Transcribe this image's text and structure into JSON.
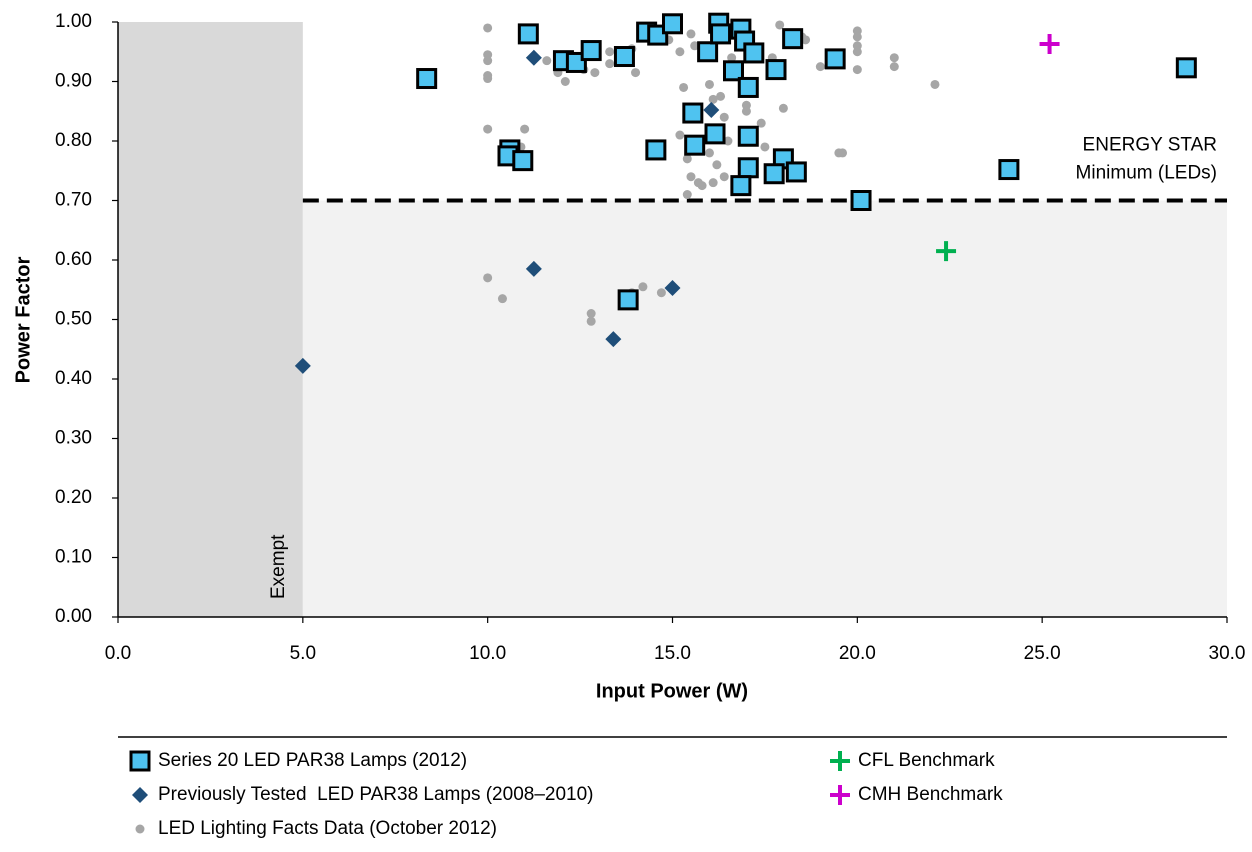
{
  "chart_data": {
    "type": "scatter",
    "xlabel": "Input Power (W)",
    "ylabel": "Power Factor",
    "xlim": [
      0,
      30
    ],
    "ylim": [
      0,
      1
    ],
    "xticks": [
      {
        "value": 0,
        "label": "0.0"
      },
      {
        "value": 5,
        "label": "5.0"
      },
      {
        "value": 10,
        "label": "10.0"
      },
      {
        "value": 15,
        "label": "15.0"
      },
      {
        "value": 20,
        "label": "20.0"
      },
      {
        "value": 25,
        "label": "25.0"
      },
      {
        "value": 30,
        "label": "30.0"
      }
    ],
    "yticks": [
      {
        "value": 0,
        "label": "0.00"
      },
      {
        "value": 0.1,
        "label": "0.10"
      },
      {
        "value": 0.2,
        "label": "0.20"
      },
      {
        "value": 0.3,
        "label": "0.30"
      },
      {
        "value": 0.4,
        "label": "0.40"
      },
      {
        "value": 0.5,
        "label": "0.50"
      },
      {
        "value": 0.6,
        "label": "0.60"
      },
      {
        "value": 0.7,
        "label": "0.70"
      },
      {
        "value": 0.8,
        "label": "0.80"
      },
      {
        "value": 0.9,
        "label": "0.90"
      },
      {
        "value": 1,
        "label": "1.00"
      }
    ],
    "exempt": {
      "xmax": 5,
      "label": "Exempt",
      "color": "#d9d9d9"
    },
    "threshold": {
      "value": 0.7,
      "label": [
        "ENERGY STAR",
        "Minimum (LEDs)"
      ],
      "color": "#f2f2f2"
    },
    "series": [
      {
        "name": "Series 20 LED PAR38 Lamps (2012)",
        "marker": "square",
        "color": "#4fc3f0",
        "x": [
          8.35,
          11.1,
          12.05,
          12.4,
          12.8,
          13.7,
          14.3,
          14.6,
          15.0,
          15.95,
          16.25,
          16.3,
          16.85,
          16.95,
          17.2,
          16.65,
          17.05,
          17.8,
          18.25,
          19.4,
          28.9,
          15.55,
          16.15,
          17.05,
          14.55,
          15.6,
          10.6,
          10.55,
          10.95,
          18.0,
          17.05,
          17.75,
          18.35,
          16.85,
          24.1,
          20.1,
          13.8
        ],
        "values": [
          0.905,
          0.98,
          0.935,
          0.932,
          0.952,
          0.942,
          0.983,
          0.978,
          0.997,
          0.95,
          0.998,
          0.98,
          0.988,
          0.968,
          0.948,
          0.918,
          0.89,
          0.92,
          0.972,
          0.938,
          0.923,
          0.847,
          0.812,
          0.808,
          0.785,
          0.793,
          0.785,
          0.775,
          0.767,
          0.77,
          0.755,
          0.745,
          0.748,
          0.725,
          0.752,
          0.7,
          0.533
        ]
      },
      {
        "name": "Previously Tested  LED PAR38 Lamps (2008–2010)",
        "marker": "diamond",
        "color": "#1f4e79",
        "x": [
          11.25,
          16.05,
          11.25,
          15.0,
          13.4,
          5.0
        ],
        "values": [
          0.94,
          0.852,
          0.585,
          0.553,
          0.467,
          0.422
        ]
      },
      {
        "name": "LED Lighting Facts Data (October 2012)",
        "marker": "circle",
        "color": "#a6a6a6",
        "x": [
          10.0,
          10.0,
          10.0,
          10.0,
          10.0,
          10.0,
          10.0,
          10.4,
          11.0,
          10.9,
          11.6,
          11.9,
          12.1,
          12.6,
          12.9,
          13.3,
          13.3,
          13.9,
          14.0,
          14.3,
          14.9,
          15.2,
          15.3,
          15.5,
          15.6,
          15.2,
          15.4,
          15.5,
          15.7,
          15.4,
          15.8,
          16.0,
          16.1,
          16.3,
          16.4,
          16.0,
          16.2,
          16.4,
          16.1,
          16.5,
          17.0,
          17.0,
          17.4,
          17.0,
          17.5,
          17.9,
          18.0,
          18.5,
          18.6,
          19.0,
          19.5,
          19.6,
          20.0,
          20.0,
          20.0,
          20.0,
          20.0,
          21.0,
          21.0,
          22.1,
          12.8,
          12.8,
          13.9,
          14.2,
          14.7,
          16.6,
          17.7
        ],
        "values": [
          0.99,
          0.945,
          0.935,
          0.91,
          0.905,
          0.82,
          0.57,
          0.535,
          0.82,
          0.79,
          0.935,
          0.915,
          0.9,
          0.92,
          0.915,
          0.95,
          0.93,
          0.955,
          0.915,
          0.99,
          0.97,
          0.95,
          0.89,
          0.98,
          0.96,
          0.81,
          0.77,
          0.74,
          0.73,
          0.71,
          0.725,
          0.895,
          0.87,
          0.875,
          0.84,
          0.78,
          0.76,
          0.74,
          0.73,
          0.8,
          0.86,
          0.85,
          0.83,
          0.805,
          0.79,
          0.995,
          0.855,
          0.975,
          0.97,
          0.925,
          0.78,
          0.78,
          0.985,
          0.975,
          0.96,
          0.95,
          0.92,
          0.94,
          0.925,
          0.895,
          0.51,
          0.497,
          0.545,
          0.555,
          0.545,
          0.94,
          0.94
        ]
      },
      {
        "name": "CFL Benchmark",
        "marker": "plus",
        "color": "#00b050",
        "x": [
          22.4
        ],
        "values": [
          0.615
        ]
      },
      {
        "name": "CMH Benchmark",
        "marker": "plus",
        "color": "#cc00cc",
        "x": [
          25.2
        ],
        "values": [
          0.963
        ]
      }
    ]
  }
}
